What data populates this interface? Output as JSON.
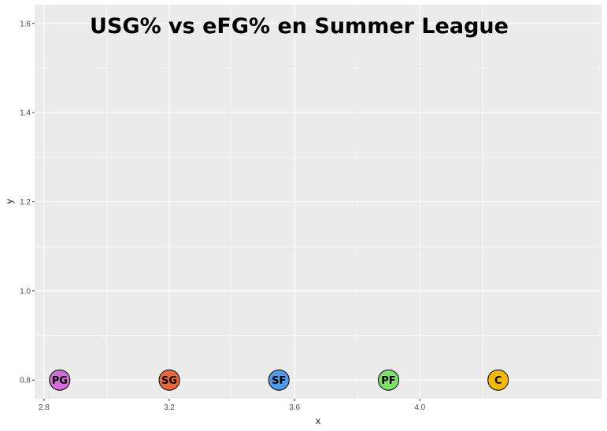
{
  "chart_data": {
    "type": "scatter",
    "title": "USG% vs eFG% en Summer League",
    "xlabel": "x",
    "ylabel": "y",
    "xlim": [
      2.77,
      4.58
    ],
    "ylim": [
      0.758,
      1.642
    ],
    "xticks": [
      2.8,
      3.2,
      3.6,
      4.0
    ],
    "yticks": [
      0.8,
      1.0,
      1.2,
      1.4,
      1.6
    ],
    "x_tick_labels": [
      "2.8",
      "3.2",
      "3.6",
      "4.0"
    ],
    "y_tick_labels": [
      "0.8",
      "1.0",
      "1.2",
      "1.4",
      "1.6"
    ],
    "grid": true,
    "background": "#ebebeb",
    "gridline_color": "#ffffff",
    "points": [
      {
        "label": "PG",
        "x": 2.85,
        "y": 0.8,
        "color": "#d16fd6"
      },
      {
        "label": "SG",
        "x": 3.2,
        "y": 0.8,
        "color": "#e86a3c"
      },
      {
        "label": "SF",
        "x": 3.55,
        "y": 0.8,
        "color": "#4f9be8"
      },
      {
        "label": "PF",
        "x": 3.9,
        "y": 0.8,
        "color": "#7ee06b"
      },
      {
        "label": "C",
        "x": 4.25,
        "y": 0.8,
        "color": "#f5b800"
      }
    ]
  }
}
